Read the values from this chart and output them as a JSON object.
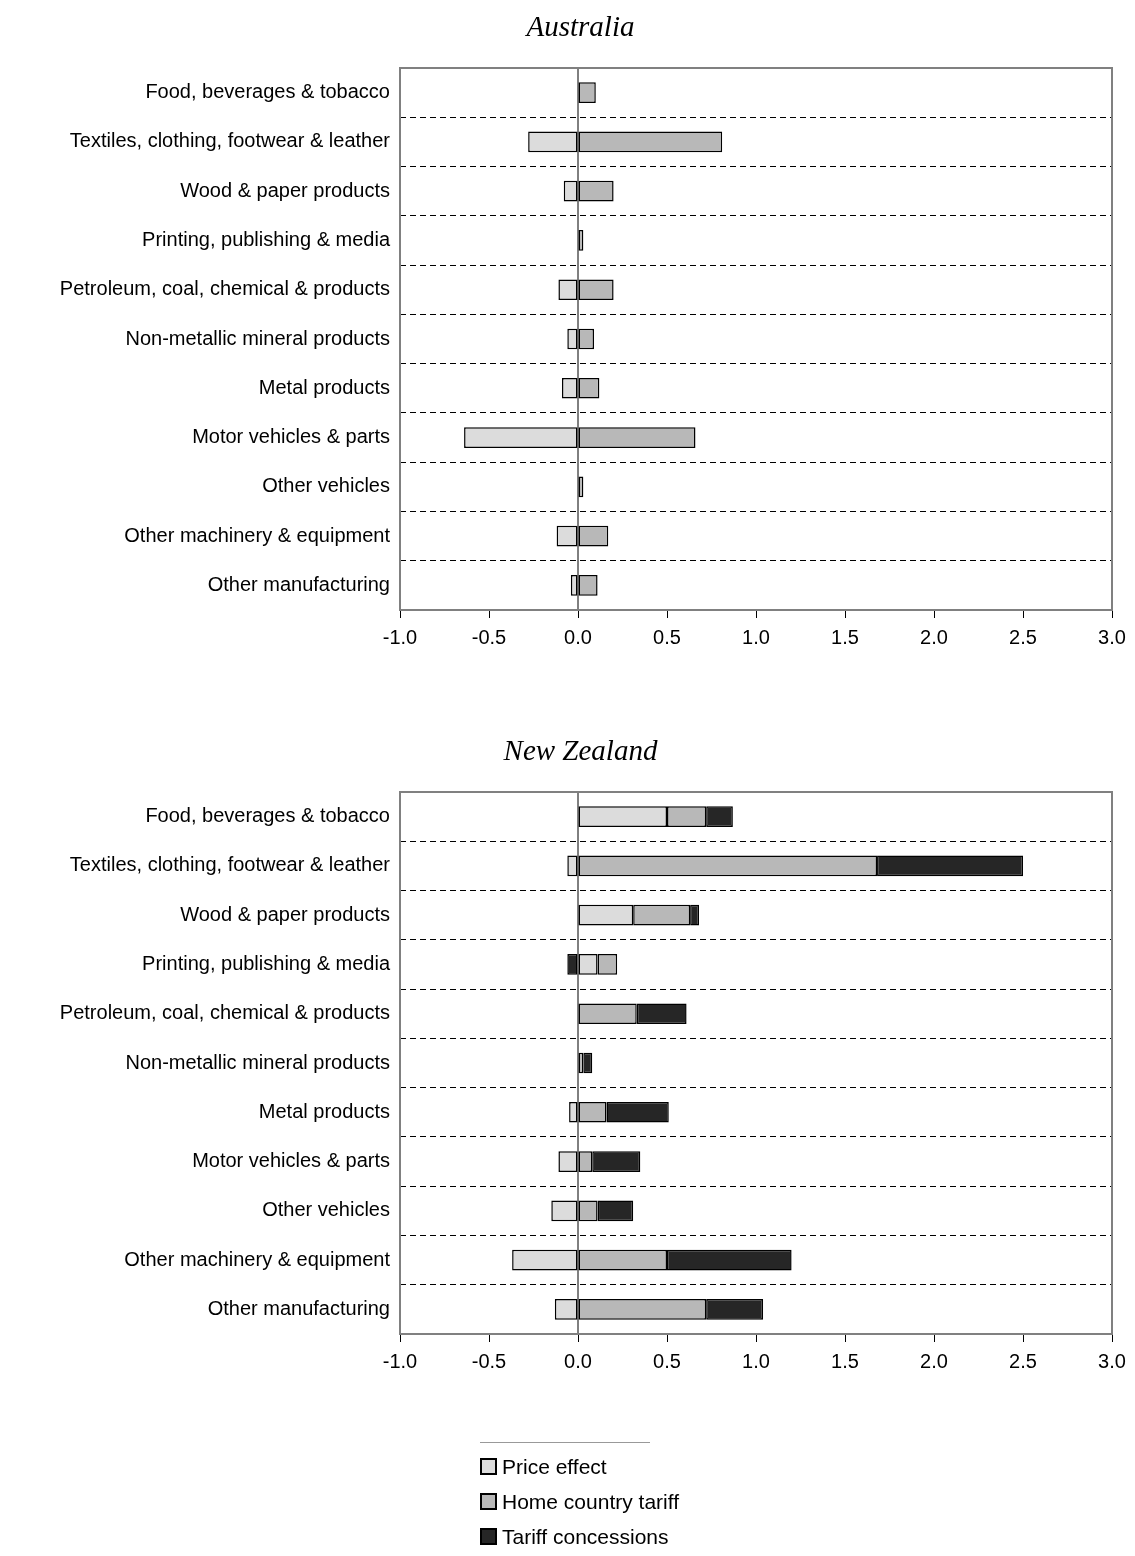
{
  "chart_data": [
    {
      "type": "bar",
      "title": "Australia",
      "orientation": "horizontal",
      "stacked": true,
      "grid": "y",
      "legend": false,
      "categories": [
        "Food, beverages & tobacco",
        "Textiles, clothing, footwear & leather",
        "Wood & paper products",
        "Printing, publishing & media",
        "Petroleum, coal, chemical & products",
        "Non-metallic mineral products",
        "Metal products",
        "Motor vehicles & parts",
        "Other vehicles",
        "Other machinery & equipment",
        "Other manufacturing"
      ],
      "series": [
        {
          "color": "#dcdcdc",
          "values": [
            null,
            -0.28,
            -0.08,
            null,
            -0.11,
            -0.06,
            -0.09,
            -0.64,
            null,
            -0.12,
            -0.04
          ]
        },
        {
          "color": "#b8b8b8",
          "values": [
            0.1,
            0.81,
            0.2,
            0.03,
            0.2,
            0.09,
            0.12,
            0.66,
            0.03,
            0.17,
            0.11
          ]
        }
      ],
      "xlim": [
        -1,
        3
      ],
      "xticks": [
        {
          "value": -1,
          "label": "-1.0"
        },
        {
          "value": -0.5,
          "label": "-0.5"
        },
        {
          "value": 0,
          "label": "0.0"
        },
        {
          "value": 0.5,
          "label": "0.5"
        },
        {
          "value": 1,
          "label": "1.0"
        },
        {
          "value": 1.5,
          "label": "1.5"
        },
        {
          "value": 2,
          "label": "2.0"
        },
        {
          "value": 2.5,
          "label": "2.5"
        },
        {
          "value": 3,
          "label": "3.0"
        }
      ]
    },
    {
      "type": "bar",
      "title": "New Zealand",
      "orientation": "horizontal",
      "stacked": true,
      "grid": "y",
      "legend": "bottom",
      "categories": [
        "Food, beverages & tobacco",
        "Textiles, clothing, footwear & leather",
        "Wood & paper products",
        "Printing, publishing & media",
        "Petroleum, coal, chemical & products",
        "Non-metallic mineral products",
        "Metal products",
        "Motor vehicles & parts",
        "Other vehicles",
        "Other machinery & equipment",
        "Other manufacturing"
      ],
      "series": [
        {
          "name": "Price effect",
          "color": "#dcdcdc",
          "values": [
            0.5,
            -0.06,
            0.31,
            0.11,
            null,
            null,
            -0.05,
            -0.11,
            -0.15,
            -0.37,
            -0.13
          ]
        },
        {
          "name": "Home country tariff",
          "color": "#b8b8b8",
          "values": [
            0.22,
            1.68,
            0.32,
            0.11,
            0.33,
            0.03,
            0.16,
            0.08,
            0.11,
            0.5,
            0.72
          ]
        },
        {
          "name": "Tariff concessions",
          "color": "#262626",
          "values": [
            0.15,
            0.82,
            0.05,
            -0.06,
            0.28,
            0.05,
            0.35,
            0.27,
            0.2,
            0.7,
            0.32
          ]
        }
      ],
      "xlim": [
        -1,
        3
      ],
      "xticks": [
        {
          "value": -1,
          "label": "-1.0"
        },
        {
          "value": -0.5,
          "label": "-0.5"
        },
        {
          "value": 0,
          "label": "0.0"
        },
        {
          "value": 0.5,
          "label": "0.5"
        },
        {
          "value": 1,
          "label": "1.0"
        },
        {
          "value": 1.5,
          "label": "1.5"
        },
        {
          "value": 2,
          "label": "2.0"
        },
        {
          "value": 2.5,
          "label": "2.5"
        },
        {
          "value": 3,
          "label": "3.0"
        }
      ]
    }
  ]
}
